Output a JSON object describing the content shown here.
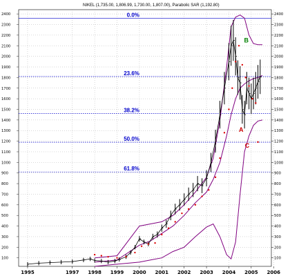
{
  "chart_data": {
    "type": "line",
    "title": "NIKEL (1,735.00, 1,806.99, 1,730.00, 1,807.00), Parabolic SAR (1,192.80)",
    "x_ticks": [
      "1995",
      "1997",
      "1998",
      "1999",
      "2000",
      "2001",
      "2002",
      "2003",
      "2004",
      "2005",
      "2006"
    ],
    "y_ticks": [
      100,
      200,
      300,
      400,
      500,
      600,
      700,
      800,
      900,
      1000,
      1100,
      1200,
      1300,
      1400,
      1500,
      1600,
      1700,
      1800,
      1900,
      2000,
      2100,
      2200,
      2300,
      2400
    ],
    "ylim": [
      20,
      2440
    ],
    "fibonacci": [
      {
        "label": "0.0%",
        "value": 2360
      },
      {
        "label": "23.6%",
        "value": 1810
      },
      {
        "label": "38.2%",
        "value": 1460
      },
      {
        "label": "50.0%",
        "value": 1190
      },
      {
        "label": "61.8%",
        "value": 910
      }
    ],
    "annotations": [
      {
        "text": "A",
        "color": "#cc0000"
      },
      {
        "text": "B",
        "color": "#008000"
      },
      {
        "text": "C",
        "color": "#cc0000"
      }
    ],
    "series": [
      {
        "type": "price",
        "x": [
          1995.0,
          1995.5,
          1996.0,
          1996.5,
          1997.0,
          1997.5,
          1997.8,
          1998.0,
          1998.3,
          1998.6,
          1998.9,
          1999.1,
          1999.4,
          1999.6,
          1999.8,
          2000.0,
          2000.2,
          2000.4,
          2000.6,
          2000.8,
          2001.0,
          2001.2,
          2001.4,
          2001.6,
          2001.8,
          2002.0,
          2002.2,
          2002.4,
          2002.6,
          2002.8,
          2003.0,
          2003.2,
          2003.4,
          2003.6,
          2003.8,
          2004.0,
          2004.1,
          2004.2,
          2004.3,
          2004.4,
          2004.5,
          2004.6,
          2004.7,
          2004.8,
          2004.9,
          2005.0,
          2005.1,
          2005.2,
          2005.3,
          2005.4
        ],
        "values": [
          40,
          50,
          55,
          60,
          65,
          80,
          90,
          75,
          70,
          60,
          70,
          85,
          110,
          150,
          200,
          280,
          250,
          230,
          300,
          320,
          380,
          420,
          500,
          560,
          600,
          650,
          700,
          740,
          800,
          780,
          850,
          1000,
          1200,
          1450,
          1700,
          1950,
          2100,
          2150,
          2000,
          1800,
          1750,
          1500,
          1450,
          1700,
          1650,
          1600,
          1650,
          1700,
          1760,
          1807
        ]
      },
      {
        "type": "parabolic_sar",
        "x": [
          1998.0,
          1998.3,
          1998.6,
          1999.0,
          1999.4,
          1999.8,
          2000.1,
          2000.4,
          2000.7,
          2001.0,
          2001.3,
          2001.6,
          2001.9,
          2002.2,
          2002.5,
          2002.8,
          2003.1,
          2003.4,
          2003.6,
          2003.8,
          2004.0,
          2004.15,
          2004.3,
          2004.45,
          2004.6,
          2004.75,
          2004.9,
          2005.05,
          2005.2,
          2005.3
        ],
        "values": [
          130,
          120,
          110,
          100,
          110,
          150,
          210,
          230,
          240,
          320,
          380,
          440,
          520,
          560,
          600,
          680,
          740,
          860,
          1040,
          1280,
          1500,
          1700,
          1950,
          2100,
          1920,
          1800,
          1720,
          1600,
          1560,
          1192
        ]
      },
      {
        "type": "bollinger_upper",
        "x": [
          1998.0,
          1999.0,
          2000.0,
          2000.5,
          2001.0,
          2001.5,
          2002.0,
          2002.5,
          2003.0,
          2003.3,
          2003.6,
          2003.9,
          2004.1,
          2004.3,
          2004.5,
          2004.7,
          2004.9,
          2005.1,
          2005.3,
          2005.5
        ],
        "values": [
          100,
          120,
          400,
          420,
          440,
          500,
          600,
          720,
          860,
          1040,
          1400,
          1900,
          2280,
          2370,
          2390,
          2360,
          2200,
          2120,
          2110,
          2110
        ]
      },
      {
        "type": "bollinger_middle",
        "x": [
          1998.0,
          1999.0,
          2000.0,
          2000.5,
          2001.0,
          2001.5,
          2002.0,
          2002.5,
          2003.0,
          2003.3,
          2003.6,
          2003.9,
          2004.1,
          2004.3,
          2004.5,
          2004.7,
          2004.9,
          2005.1,
          2005.3,
          2005.5
        ],
        "values": [
          60,
          80,
          220,
          260,
          330,
          400,
          500,
          620,
          720,
          840,
          1000,
          1250,
          1450,
          1600,
          1700,
          1740,
          1770,
          1790,
          1800,
          1820
        ]
      },
      {
        "type": "bollinger_lower",
        "x": [
          1998.0,
          1999.0,
          2000.0,
          2000.5,
          2001.0,
          2001.5,
          2002.0,
          2002.5,
          2003.0,
          2003.3,
          2003.6,
          2003.9,
          2004.1,
          2004.3,
          2004.5,
          2004.7,
          2004.9,
          2005.1,
          2005.3,
          2005.5
        ],
        "values": [
          20,
          40,
          60,
          80,
          100,
          160,
          200,
          300,
          390,
          420,
          300,
          130,
          90,
          250,
          700,
          1100,
          1250,
          1350,
          1390,
          1400
        ]
      }
    ]
  },
  "colors": {
    "price": "#000000",
    "sar": "#dd0000",
    "bands": "#800080",
    "fib": "#0000cc",
    "grid": "#9a9a9a"
  }
}
